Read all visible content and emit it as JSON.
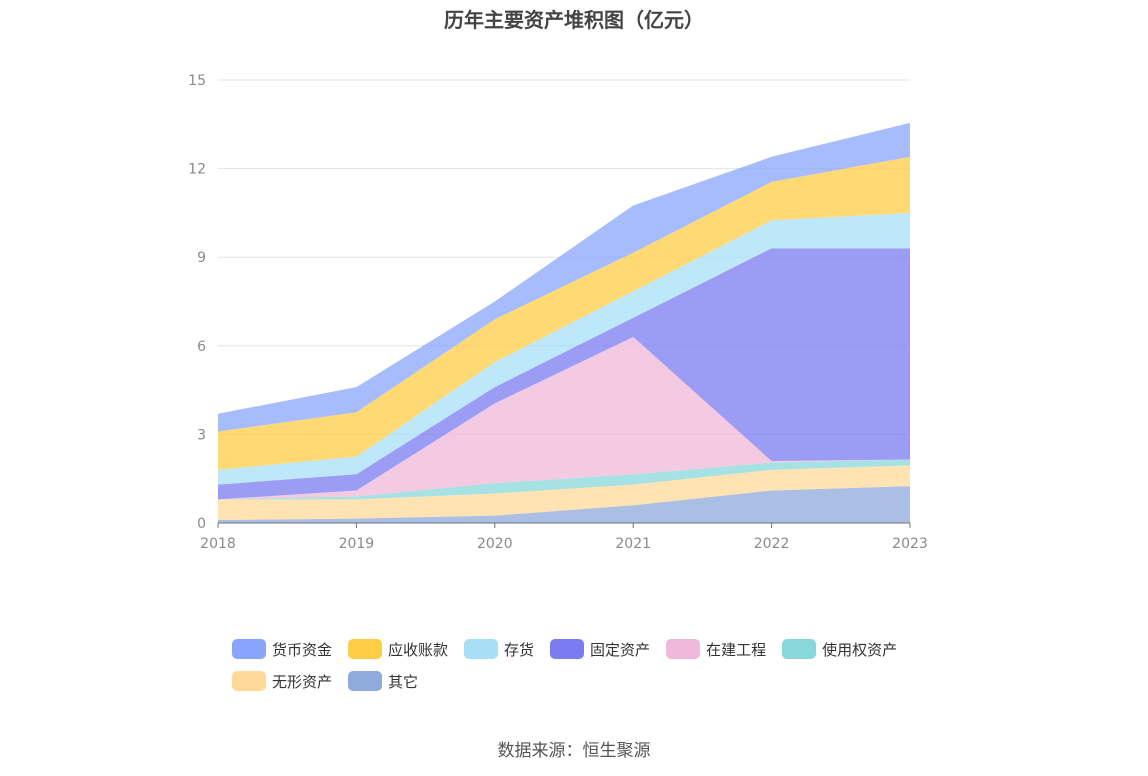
{
  "chart_data": {
    "type": "area",
    "stacked": true,
    "title": "历年主要资产堆积图（亿元）",
    "categories": [
      "2018",
      "2019",
      "2020",
      "2021",
      "2022",
      "2023"
    ],
    "ylim": [
      0,
      15
    ],
    "yticks": [
      "0",
      "3",
      "6",
      "9",
      "12",
      "15"
    ],
    "grid": true,
    "legend_position": "bottom",
    "series": [
      {
        "name": "其它",
        "color": "#8faadc",
        "values": [
          0.1,
          0.15,
          0.25,
          0.6,
          1.1,
          1.25
        ]
      },
      {
        "name": "无形资产",
        "color": "#ffd99a",
        "values": [
          0.7,
          0.65,
          0.75,
          0.7,
          0.7,
          0.7
        ]
      },
      {
        "name": "使用权资产",
        "color": "#88d8db",
        "values": [
          0.0,
          0.1,
          0.35,
          0.35,
          0.25,
          0.2
        ]
      },
      {
        "name": "在建工程",
        "color": "#f0b8da",
        "values": [
          0.0,
          0.2,
          2.7,
          4.65,
          0.05,
          0.0
        ]
      },
      {
        "name": "固定资产",
        "color": "#7a7cf0",
        "values": [
          0.5,
          0.55,
          0.55,
          0.65,
          7.2,
          7.15
        ]
      },
      {
        "name": "存货",
        "color": "#a8dff7",
        "values": [
          0.5,
          0.6,
          0.85,
          0.9,
          0.95,
          1.2
        ]
      },
      {
        "name": "应收账款",
        "color": "#ffcd45",
        "values": [
          1.3,
          1.5,
          1.45,
          1.3,
          1.3,
          1.9
        ]
      },
      {
        "name": "货币资金",
        "color": "#88a5fb",
        "values": [
          0.6,
          0.85,
          0.6,
          1.6,
          0.85,
          1.15
        ]
      }
    ]
  },
  "legend_order": [
    "货币资金",
    "应收账款",
    "存货",
    "固定资产",
    "在建工程",
    "使用权资产",
    "无形资产",
    "其它"
  ],
  "source_note": "数据来源：恒生聚源"
}
